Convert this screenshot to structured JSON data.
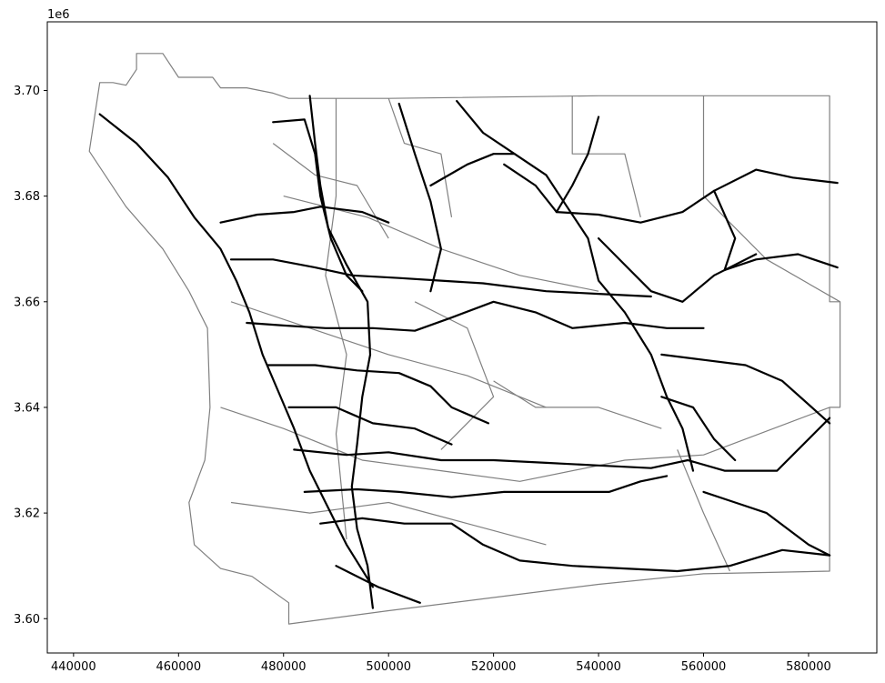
{
  "chart_data": {
    "type": "map",
    "title": "",
    "xlabel": "",
    "ylabel": "",
    "y_offset_label": "1e6",
    "xlim": [
      435000,
      593000
    ],
    "ylim": [
      3593500,
      3713000
    ],
    "x_ticks": [
      440000,
      460000,
      480000,
      500000,
      520000,
      540000,
      560000,
      580000
    ],
    "x_tick_labels": [
      "440000",
      "460000",
      "480000",
      "500000",
      "520000",
      "540000",
      "560000",
      "580000"
    ],
    "y_ticks": [
      3600000,
      3620000,
      3640000,
      3660000,
      3680000,
      3700000
    ],
    "y_tick_labels": [
      "3.60",
      "3.62",
      "3.64",
      "3.66",
      "3.68",
      "3.70"
    ],
    "grid": false,
    "colors": {
      "boundaries": "#808080",
      "roads": "#000000"
    },
    "boundary_outline": [
      [
        443000,
        3688500
      ],
      [
        445000,
        3701500
      ],
      [
        447500,
        3701500
      ],
      [
        450000,
        3701000
      ],
      [
        452000,
        3704000
      ],
      [
        452000,
        3707000
      ],
      [
        457000,
        3707000
      ],
      [
        460000,
        3702500
      ],
      [
        466500,
        3702500
      ],
      [
        468000,
        3700500
      ],
      [
        473000,
        3700500
      ],
      [
        478000,
        3699500
      ],
      [
        481000,
        3698500
      ],
      [
        500000,
        3698500
      ],
      [
        540000,
        3699000
      ],
      [
        565000,
        3699000
      ],
      [
        584000,
        3699000
      ],
      [
        584000,
        3660000
      ],
      [
        586000,
        3660000
      ],
      [
        586000,
        3640000
      ],
      [
        584000,
        3640000
      ],
      [
        584000,
        3609000
      ],
      [
        560000,
        3608500
      ],
      [
        540000,
        3606500
      ],
      [
        520000,
        3604000
      ],
      [
        500000,
        3601500
      ],
      [
        481000,
        3599000
      ],
      [
        481000,
        3603000
      ],
      [
        474000,
        3608000
      ],
      [
        468000,
        3609500
      ],
      [
        463000,
        3614000
      ],
      [
        462000,
        3622000
      ],
      [
        465000,
        3630000
      ],
      [
        466000,
        3640000
      ],
      [
        465500,
        3655000
      ],
      [
        462000,
        3662000
      ],
      [
        457000,
        3670000
      ],
      [
        450000,
        3678000
      ],
      [
        443000,
        3688500
      ]
    ],
    "interior_lines": [
      [
        [
          490000,
          3698500
        ],
        [
          490000,
          3680000
        ],
        [
          488000,
          3665000
        ],
        [
          492000,
          3650000
        ],
        [
          490000,
          3635000
        ],
        [
          492000,
          3615000
        ]
      ],
      [
        [
          500000,
          3698500
        ],
        [
          503000,
          3690000
        ],
        [
          510000,
          3688000
        ],
        [
          512000,
          3676000
        ]
      ],
      [
        [
          535000,
          3699000
        ],
        [
          535000,
          3688000
        ],
        [
          545000,
          3688000
        ],
        [
          548000,
          3676000
        ]
      ],
      [
        [
          560000,
          3699000
        ],
        [
          560000,
          3680000
        ],
        [
          572000,
          3668000
        ],
        [
          586000,
          3660000
        ]
      ],
      [
        [
          480000,
          3680000
        ],
        [
          496000,
          3676000
        ],
        [
          510000,
          3670000
        ],
        [
          525000,
          3665000
        ],
        [
          540000,
          3662000
        ]
      ],
      [
        [
          470000,
          3660000
        ],
        [
          485000,
          3655000
        ],
        [
          500000,
          3650000
        ],
        [
          515000,
          3646000
        ],
        [
          530000,
          3640000
        ]
      ],
      [
        [
          468000,
          3640000
        ],
        [
          480000,
          3636000
        ],
        [
          495000,
          3630000
        ],
        [
          510000,
          3628000
        ],
        [
          525000,
          3626000
        ],
        [
          545000,
          3630000
        ],
        [
          560000,
          3631000
        ],
        [
          584000,
          3640000
        ]
      ],
      [
        [
          470000,
          3622000
        ],
        [
          485000,
          3620000
        ],
        [
          500000,
          3622000
        ],
        [
          515000,
          3618000
        ],
        [
          530000,
          3614000
        ]
      ],
      [
        [
          555000,
          3632000
        ],
        [
          560000,
          3620000
        ],
        [
          565000,
          3609000
        ]
      ],
      [
        [
          520000,
          3645000
        ],
        [
          528000,
          3640000
        ],
        [
          540000,
          3640000
        ],
        [
          552000,
          3636000
        ]
      ],
      [
        [
          505000,
          3660000
        ],
        [
          515000,
          3655000
        ],
        [
          520000,
          3642000
        ],
        [
          510000,
          3632000
        ]
      ],
      [
        [
          478000,
          3690000
        ],
        [
          486000,
          3684000
        ],
        [
          494000,
          3682000
        ],
        [
          500000,
          3672000
        ]
      ]
    ],
    "roads": [
      [
        [
          445000,
          3695500
        ],
        [
          452000,
          3690000
        ],
        [
          458000,
          3683500
        ],
        [
          463000,
          3676000
        ],
        [
          468000,
          3670000
        ],
        [
          471000,
          3664000
        ],
        [
          473500,
          3658000
        ],
        [
          476000,
          3650000
        ],
        [
          479000,
          3643000
        ],
        [
          482000,
          3636000
        ],
        [
          485000,
          3628000
        ],
        [
          488000,
          3622000
        ],
        [
          492000,
          3614000
        ],
        [
          497000,
          3606000
        ]
      ],
      [
        [
          485000,
          3699000
        ],
        [
          486000,
          3690000
        ],
        [
          487000,
          3682000
        ],
        [
          488500,
          3674000
        ],
        [
          492000,
          3667000
        ],
        [
          496000,
          3660000
        ],
        [
          496500,
          3650000
        ],
        [
          495000,
          3642000
        ],
        [
          494000,
          3633000
        ],
        [
          493000,
          3625000
        ],
        [
          494000,
          3617000
        ],
        [
          496000,
          3610000
        ],
        [
          497000,
          3602000
        ]
      ],
      [
        [
          478000,
          3694000
        ],
        [
          484000,
          3694500
        ],
        [
          486000,
          3688000
        ],
        [
          487000,
          3680000
        ],
        [
          489000,
          3672000
        ],
        [
          492000,
          3665000
        ],
        [
          495000,
          3662000
        ]
      ],
      [
        [
          468000,
          3675000
        ],
        [
          475000,
          3676500
        ],
        [
          482000,
          3677000
        ],
        [
          487000,
          3678000
        ],
        [
          495000,
          3677000
        ],
        [
          500000,
          3675000
        ]
      ],
      [
        [
          470000,
          3668000
        ],
        [
          478000,
          3668000
        ],
        [
          486000,
          3666500
        ],
        [
          493000,
          3665000
        ],
        [
          502000,
          3664500
        ],
        [
          510000,
          3664000
        ],
        [
          518000,
          3663500
        ],
        [
          530000,
          3662000
        ],
        [
          540000,
          3661500
        ],
        [
          550000,
          3661000
        ]
      ],
      [
        [
          473000,
          3656000
        ],
        [
          480000,
          3655500
        ],
        [
          488000,
          3655000
        ],
        [
          497000,
          3655000
        ],
        [
          505000,
          3654500
        ],
        [
          512000,
          3657000
        ],
        [
          520000,
          3660000
        ],
        [
          528000,
          3658000
        ],
        [
          535000,
          3655000
        ],
        [
          545000,
          3656000
        ],
        [
          553000,
          3655000
        ],
        [
          560000,
          3655000
        ]
      ],
      [
        [
          477000,
          3648000
        ],
        [
          486000,
          3648000
        ],
        [
          494000,
          3647000
        ],
        [
          502000,
          3646500
        ],
        [
          508000,
          3644000
        ],
        [
          512000,
          3640000
        ],
        [
          519000,
          3637000
        ]
      ],
      [
        [
          481000,
          3640000
        ],
        [
          490000,
          3640000
        ],
        [
          497000,
          3637000
        ],
        [
          505000,
          3636000
        ],
        [
          512000,
          3633000
        ]
      ],
      [
        [
          482000,
          3632000
        ],
        [
          492000,
          3631000
        ],
        [
          500000,
          3631500
        ],
        [
          510000,
          3630000
        ],
        [
          520000,
          3630000
        ],
        [
          530000,
          3629500
        ],
        [
          540000,
          3629000
        ],
        [
          550000,
          3628500
        ],
        [
          557000,
          3630000
        ],
        [
          564000,
          3628000
        ],
        [
          574000,
          3628000
        ],
        [
          584000,
          3638000
        ]
      ],
      [
        [
          484000,
          3624000
        ],
        [
          494000,
          3624500
        ],
        [
          502000,
          3624000
        ],
        [
          512000,
          3623000
        ],
        [
          522000,
          3624000
        ],
        [
          532000,
          3624000
        ],
        [
          542000,
          3624000
        ],
        [
          548000,
          3626000
        ],
        [
          553000,
          3627000
        ]
      ],
      [
        [
          487000,
          3618000
        ],
        [
          495000,
          3619000
        ],
        [
          503000,
          3618000
        ],
        [
          512000,
          3618000
        ],
        [
          518000,
          3614000
        ],
        [
          525000,
          3611000
        ],
        [
          535000,
          3610000
        ],
        [
          545000,
          3609500
        ],
        [
          555000,
          3609000
        ],
        [
          565000,
          3610000
        ],
        [
          575000,
          3613000
        ],
        [
          584000,
          3612000
        ]
      ],
      [
        [
          490000,
          3610000
        ],
        [
          498000,
          3606000
        ],
        [
          506000,
          3603000
        ]
      ],
      [
        [
          502000,
          3697500
        ],
        [
          505000,
          3688000
        ],
        [
          508000,
          3679000
        ],
        [
          510000,
          3670000
        ],
        [
          508000,
          3662000
        ]
      ],
      [
        [
          513000,
          3698000
        ],
        [
          518000,
          3692000
        ],
        [
          524000,
          3688000
        ],
        [
          530000,
          3684000
        ],
        [
          534000,
          3678000
        ],
        [
          538000,
          3672000
        ],
        [
          540000,
          3664000
        ],
        [
          545000,
          3658000
        ],
        [
          550000,
          3650000
        ],
        [
          553000,
          3642000
        ],
        [
          556000,
          3636000
        ],
        [
          558000,
          3628000
        ]
      ],
      [
        [
          540000,
          3695000
        ],
        [
          538000,
          3688000
        ],
        [
          535000,
          3682000
        ],
        [
          532000,
          3677000
        ]
      ],
      [
        [
          532000,
          3677000
        ],
        [
          540000,
          3676500
        ],
        [
          548000,
          3675000
        ],
        [
          556000,
          3677000
        ],
        [
          562000,
          3681000
        ],
        [
          570000,
          3685000
        ],
        [
          577000,
          3683500
        ],
        [
          585500,
          3682500
        ]
      ],
      [
        [
          562000,
          3681000
        ],
        [
          566000,
          3672000
        ],
        [
          564000,
          3666000
        ],
        [
          570000,
          3668000
        ],
        [
          578000,
          3669000
        ],
        [
          585500,
          3666500
        ]
      ],
      [
        [
          540000,
          3672000
        ],
        [
          546000,
          3666000
        ],
        [
          550000,
          3662000
        ],
        [
          556000,
          3660000
        ],
        [
          562000,
          3665000
        ],
        [
          570000,
          3669000
        ]
      ],
      [
        [
          552000,
          3650000
        ],
        [
          560000,
          3649000
        ],
        [
          568000,
          3648000
        ],
        [
          575000,
          3645000
        ],
        [
          584000,
          3637000
        ]
      ],
      [
        [
          552000,
          3642000
        ],
        [
          558000,
          3640000
        ],
        [
          562000,
          3634000
        ],
        [
          566000,
          3630000
        ]
      ],
      [
        [
          560000,
          3624000
        ],
        [
          566000,
          3622000
        ],
        [
          572000,
          3620000
        ],
        [
          580000,
          3614000
        ],
        [
          584000,
          3612000
        ]
      ],
      [
        [
          522000,
          3686000
        ],
        [
          528000,
          3682000
        ],
        [
          532000,
          3677000
        ]
      ],
      [
        [
          508000,
          3682000
        ],
        [
          515000,
          3686000
        ],
        [
          520000,
          3688000
        ],
        [
          524000,
          3688000
        ]
      ]
    ]
  }
}
